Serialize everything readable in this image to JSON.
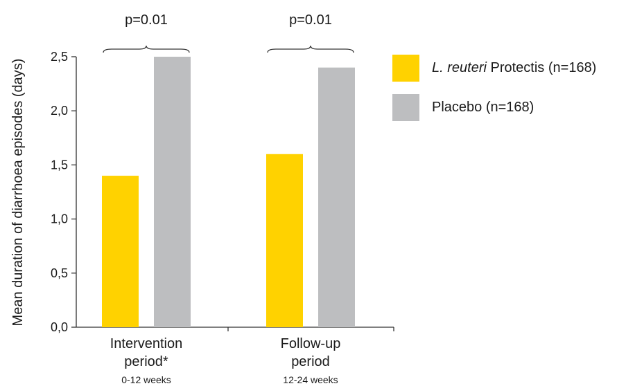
{
  "chart_data": {
    "type": "bar",
    "ylabel": "Mean duration of diarrhoea episodes (days)",
    "ylim": [
      0,
      2.5
    ],
    "yticks": [
      "0,0",
      "0,5",
      "1,0",
      "1,5",
      "2,0",
      "2,5"
    ],
    "categories": [
      {
        "label_lines": [
          "Intervention",
          "period*"
        ],
        "sublabel": "0-12 weeks",
        "p_value": "p=0.01"
      },
      {
        "label_lines": [
          "Follow-up",
          "period"
        ],
        "sublabel": "12-24 weeks",
        "p_value": "p=0.01"
      }
    ],
    "series": [
      {
        "name_italic": "L. reuteri",
        "name_rest": " Protectis (n=168)",
        "color": "#FFD200",
        "values": [
          1.4,
          1.6
        ]
      },
      {
        "name": "Placebo (n=168)",
        "color": "#BDBEC0",
        "values": [
          2.5,
          2.4
        ]
      }
    ],
    "legend_position": "right"
  }
}
